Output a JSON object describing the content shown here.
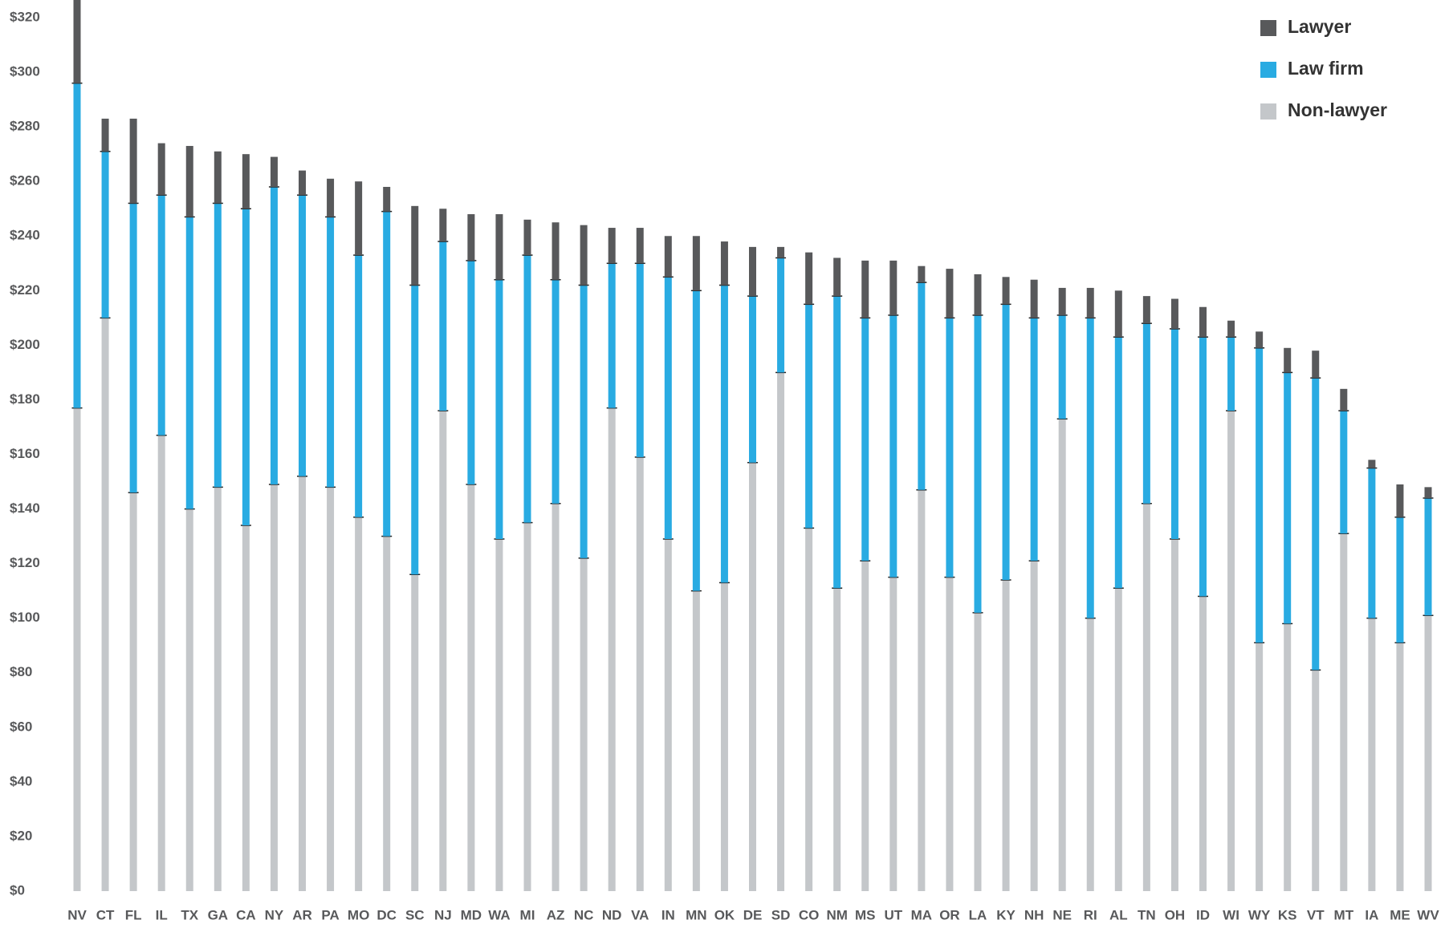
{
  "chart_data": {
    "type": "stacked-bar",
    "categories": [
      "NV",
      "CT",
      "FL",
      "IL",
      "TX",
      "GA",
      "CA",
      "NY",
      "AR",
      "PA",
      "MO",
      "DC",
      "SC",
      "NJ",
      "MD",
      "WA",
      "MI",
      "AZ",
      "NC",
      "ND",
      "VA",
      "IN",
      "MN",
      "OK",
      "DE",
      "SD",
      "CO",
      "NM",
      "MS",
      "UT",
      "MA",
      "OR",
      "LA",
      "KY",
      "NH",
      "NE",
      "RI",
      "AL",
      "TN",
      "OH",
      "ID",
      "WI",
      "WY",
      "KS",
      "VT",
      "MT",
      "IA",
      "ME",
      "WV"
    ],
    "series": [
      {
        "name": "Non-lawyer",
        "color": "#c4c7ca",
        "values": [
          177,
          210,
          146,
          167,
          140,
          148,
          134,
          149,
          152,
          148,
          137,
          130,
          116,
          176,
          149,
          129,
          135,
          142,
          122,
          177,
          159,
          129,
          110,
          113,
          157,
          190,
          133,
          111,
          121,
          115,
          147,
          115,
          102,
          114,
          121,
          173,
          100,
          111,
          142,
          129,
          108,
          176,
          91,
          98,
          81,
          131,
          100,
          91,
          101
        ]
      },
      {
        "name": "Law firm",
        "color": "#29abe2",
        "values": [
          119,
          61,
          106,
          88,
          107,
          104,
          116,
          109,
          103,
          99,
          96,
          119,
          106,
          62,
          82,
          95,
          98,
          82,
          100,
          53,
          71,
          96,
          110,
          109,
          61,
          42,
          82,
          107,
          89,
          96,
          76,
          95,
          109,
          101,
          89,
          38,
          110,
          92,
          66,
          77,
          95,
          27,
          108,
          92,
          107,
          45,
          55,
          46,
          43
        ]
      },
      {
        "name": "Lawyer",
        "color": "#58595b",
        "values": [
          31,
          12,
          31,
          19,
          26,
          19,
          20,
          11,
          9,
          14,
          27,
          9,
          29,
          12,
          17,
          24,
          13,
          21,
          22,
          13,
          13,
          15,
          20,
          16,
          18,
          4,
          19,
          14,
          21,
          20,
          6,
          18,
          15,
          10,
          14,
          10,
          11,
          17,
          10,
          11,
          11,
          6,
          6,
          9,
          10,
          8,
          3,
          12,
          4
        ]
      }
    ],
    "ylim": [
      0,
      325
    ],
    "yticks": [
      {
        "value": 0,
        "label": "$0"
      },
      {
        "value": 20,
        "label": "$20"
      },
      {
        "value": 40,
        "label": "$40"
      },
      {
        "value": 60,
        "label": "$60"
      },
      {
        "value": 80,
        "label": "$80"
      },
      {
        "value": 100,
        "label": "$100"
      },
      {
        "value": 120,
        "label": "$120"
      },
      {
        "value": 140,
        "label": "$140"
      },
      {
        "value": 160,
        "label": "$160"
      },
      {
        "value": 180,
        "label": "$180"
      },
      {
        "value": 200,
        "label": "$200"
      },
      {
        "value": 220,
        "label": "$220"
      },
      {
        "value": 240,
        "label": "$240"
      },
      {
        "value": 260,
        "label": "$260"
      },
      {
        "value": 280,
        "label": "$280"
      },
      {
        "value": 300,
        "label": "$300"
      },
      {
        "value": 320,
        "label": "$320"
      }
    ],
    "legend": "top-right"
  }
}
